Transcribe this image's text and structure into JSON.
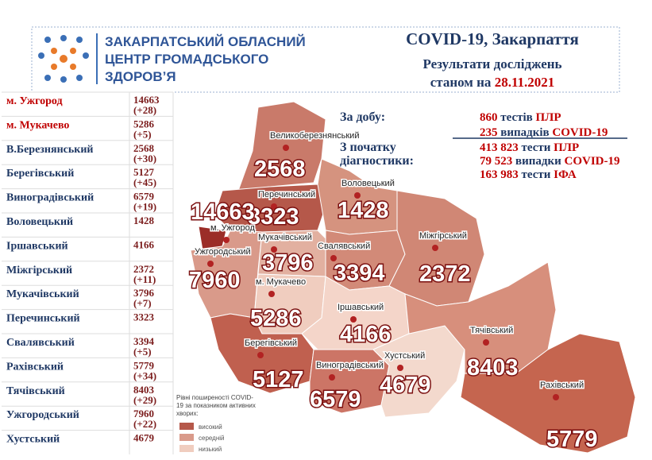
{
  "header": {
    "org": [
      "ЗАКАРПАТСЬКИЙ ОБЛАСНИЙ",
      "ЦЕНТР ГРОМАДСЬКОГО",
      "ЗДОРОВʼЯ"
    ],
    "title": "COVID-19, Закарпаття",
    "subtitle": "Результати досліджень",
    "date_prefix": "станом на",
    "date": "28.11.2021"
  },
  "summary": {
    "day_label": "За добу:",
    "day": [
      {
        "number": "860",
        "text": "тестів",
        "highlight": "ПЛР"
      },
      {
        "number": "235",
        "text": "випадків",
        "highlight": "COVID-19"
      }
    ],
    "total_label": [
      "З початку",
      "діагностики:"
    ],
    "total": [
      {
        "number": "413 823",
        "text": "тести",
        "highlight": "ПЛР"
      },
      {
        "number": "79 523",
        "text": "випадки",
        "highlight": "COVID-19"
      },
      {
        "number": "163 983",
        "text": "тести",
        "highlight": "ІФА"
      }
    ]
  },
  "table": {
    "rows": [
      [
        "м. Ужгород",
        14663,
        "(+28)"
      ],
      [
        "м. Мукачево",
        5286,
        "(+5)"
      ],
      [
        "В.Березнянський",
        2568,
        "(+30)"
      ],
      [
        "Берегівський",
        5127,
        "(+45)"
      ],
      [
        "Виноградівський",
        6579,
        "(+19)"
      ],
      [
        "Воловецький",
        1428,
        null
      ],
      [
        "Іршавський",
        4166,
        null
      ],
      [
        "Міжгірський",
        2372,
        "(+11)"
      ],
      [
        "Мукачівський",
        3796,
        "(+7)"
      ],
      [
        "Перечинський",
        3323,
        null
      ],
      [
        "Свалявський",
        3394,
        "(+5)"
      ],
      [
        "Рахівський",
        5779,
        "(+34)"
      ],
      [
        "Тячівський",
        8403,
        "(+29)"
      ],
      [
        "Ужгородський",
        7960,
        "(+22)"
      ],
      [
        "Хустський",
        4679,
        null
      ]
    ]
  },
  "map": {
    "regions": [
      {
        "name": "Великоберезнянський",
        "value": 2568
      },
      {
        "name": "Перечинський",
        "value": 3323
      },
      {
        "name": "Воловецький",
        "value": 1428
      },
      {
        "name": "м. Ужгород",
        "value": 14663
      },
      {
        "name": "Ужгородський",
        "value": 7960
      },
      {
        "name": "Мукачівський",
        "value": 3796
      },
      {
        "name": "Свалявський",
        "value": 3394
      },
      {
        "name": "Міжгірський",
        "value": 2372
      },
      {
        "name": "м. Мукачево",
        "value": 5286
      },
      {
        "name": "Іршавський",
        "value": 4166
      },
      {
        "name": "Берегівський",
        "value": 5127
      },
      {
        "name": "Виноградівський",
        "value": 6579
      },
      {
        "name": "Хустський",
        "value": 4679
      },
      {
        "name": "Тячівський",
        "value": 8403
      },
      {
        "name": "Рахівський",
        "value": 5779
      }
    ]
  },
  "legend": {
    "title": [
      "Рівні поширеності COVID-",
      "19 за показником активних",
      "хворих:"
    ],
    "items": [
      "високий",
      "середній",
      "низький"
    ]
  }
}
